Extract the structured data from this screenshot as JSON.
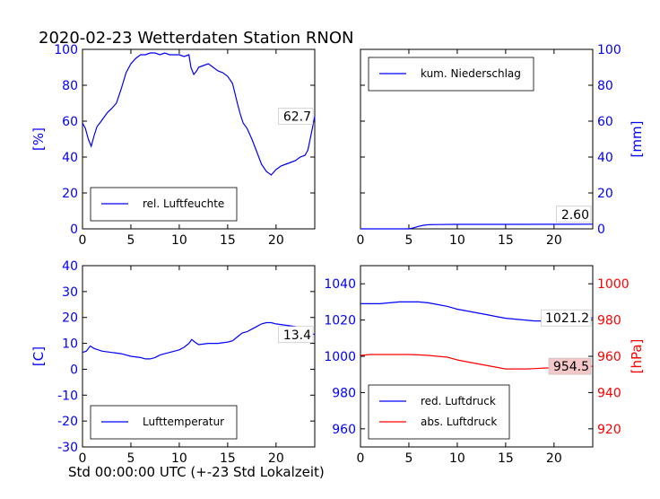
{
  "figure": {
    "title": "2020-02-23 Wetterdaten Station RNON",
    "xlabel": "Std 00:00:00 UTC (+-23 Std Lokalzeit)"
  },
  "colors": {
    "blue": "#0000ff",
    "red": "#ff0000",
    "label_bg": "#ffffff",
    "red_label_bg": "#f4c8c8"
  },
  "chart_data": [
    {
      "type": "line",
      "panel": "top-left",
      "ylabel": "[%]",
      "xlim": [
        0,
        24
      ],
      "ylim": [
        0,
        100
      ],
      "xticks": [
        0,
        5,
        10,
        15,
        20
      ],
      "yticks": [
        0,
        20,
        40,
        60,
        80,
        100
      ],
      "ytick_side": "left",
      "legend": {
        "placement": "lower-left",
        "entries": [
          "rel. Luftfeuchte"
        ]
      },
      "series": [
        {
          "name": "rel. Luftfeuchte",
          "color": "#0000ff",
          "axis": "left",
          "last_label": "62.7",
          "x": [
            0,
            0.3,
            0.6,
            0.9,
            1.2,
            1.5,
            1.8,
            2.2,
            2.6,
            3,
            3.5,
            4,
            4.5,
            5,
            5.5,
            6,
            6.5,
            7,
            7.5,
            8,
            8.5,
            9,
            9.5,
            10,
            10.5,
            11,
            11.2,
            11.5,
            11.8,
            12,
            12.5,
            13,
            13.5,
            14,
            14.5,
            15,
            15.5,
            16,
            16.3,
            16.6,
            17,
            17.5,
            18,
            18.5,
            19,
            19.5,
            20,
            20.5,
            21,
            21.5,
            22,
            22.5,
            23,
            23.3,
            23.6,
            24
          ],
          "y": [
            59,
            56,
            50,
            46,
            52,
            57,
            59,
            62,
            65,
            67,
            70,
            78,
            87,
            92,
            95,
            97,
            97,
            98,
            98,
            97,
            98,
            97,
            97,
            97,
            96,
            97,
            90,
            86,
            88,
            90,
            91,
            92,
            90,
            88,
            87,
            85,
            81,
            70,
            64,
            59,
            56,
            50,
            43,
            36,
            32,
            30,
            33,
            35,
            36,
            37,
            38,
            40,
            41,
            44,
            52,
            62.7
          ]
        }
      ]
    },
    {
      "type": "line",
      "panel": "top-right",
      "ylabel": "[mm]",
      "xlim": [
        0,
        24
      ],
      "ylim": [
        0,
        100
      ],
      "xticks": [
        0,
        5,
        10,
        15,
        20
      ],
      "yticks": [
        0,
        20,
        40,
        60,
        80,
        100
      ],
      "ytick_side": "right",
      "legend": {
        "placement": "top-left",
        "entries": [
          "kum. Niederschlag"
        ]
      },
      "series": [
        {
          "name": "kum. Niederschlag",
          "color": "#0000ff",
          "axis": "right",
          "last_label": "2.60",
          "x": [
            0,
            5,
            5.5,
            6,
            6.5,
            7,
            8,
            10,
            15,
            20,
            24
          ],
          "y": [
            0,
            0,
            0.6,
            1.4,
            2,
            2.3,
            2.4,
            2.5,
            2.5,
            2.55,
            2.6
          ]
        }
      ]
    },
    {
      "type": "line",
      "panel": "bottom-left",
      "ylabel": "[C]",
      "xlim": [
        0,
        24
      ],
      "ylim": [
        -30,
        40
      ],
      "xticks": [
        0,
        5,
        10,
        15,
        20
      ],
      "yticks": [
        -30,
        -20,
        -10,
        0,
        10,
        20,
        30,
        40
      ],
      "ytick_side": "left",
      "legend": {
        "placement": "lower-left",
        "entries": [
          "Lufttemperatur"
        ]
      },
      "series": [
        {
          "name": "Lufttemperatur",
          "color": "#0000ff",
          "axis": "left",
          "last_label": "13.4",
          "x": [
            0,
            0.4,
            0.8,
            1.2,
            2,
            3,
            4,
            5,
            6,
            6.5,
            7,
            7.5,
            8,
            8.5,
            9,
            10,
            10.5,
            11,
            11.3,
            11.6,
            12,
            13,
            14,
            15,
            15.5,
            16,
            16.5,
            17,
            17.5,
            18,
            18.5,
            19,
            19.5,
            20,
            21,
            22,
            22.5,
            23,
            23.5,
            24
          ],
          "y": [
            6.5,
            7,
            9,
            8,
            7,
            6.5,
            6,
            5,
            4.5,
            4,
            4,
            4.5,
            5.5,
            6,
            6.5,
            7.5,
            8.5,
            10,
            11.5,
            10.5,
            9.5,
            10,
            10,
            10.5,
            11,
            12.5,
            14,
            14.5,
            15.5,
            16.5,
            17.5,
            18,
            18,
            17.5,
            17,
            16.5,
            16,
            15,
            14,
            13.4
          ]
        }
      ]
    },
    {
      "type": "line",
      "panel": "bottom-right",
      "ylabel": "[hPa]",
      "xlim": [
        0,
        24
      ],
      "ylim": [
        950,
        1050
      ],
      "ylim_right": [
        910,
        1010
      ],
      "xticks": [
        0,
        5,
        10,
        15,
        20
      ],
      "yticks": [
        960,
        980,
        1000,
        1020,
        1040
      ],
      "yticks_right": [
        920,
        940,
        960,
        980,
        1000
      ],
      "ytick_side": "both",
      "legend": {
        "placement": "lower-left",
        "entries": [
          "red. Luftdruck",
          "abs. Luftdruck"
        ]
      },
      "series": [
        {
          "name": "red. Luftdruck",
          "color": "#0000ff",
          "axis": "left",
          "last_label": "1021.2",
          "x": [
            0,
            1,
            2,
            3,
            4,
            5,
            6,
            7,
            8,
            9,
            10,
            11,
            12,
            13,
            14,
            15,
            16,
            17,
            18,
            19,
            20,
            21,
            22,
            23,
            24
          ],
          "y": [
            1029,
            1029,
            1029,
            1029.5,
            1030,
            1030,
            1030,
            1029.5,
            1028.5,
            1027.5,
            1026,
            1025,
            1024,
            1023,
            1022,
            1021,
            1020.5,
            1020,
            1019.5,
            1019.5,
            1019.5,
            1020,
            1020.5,
            1021,
            1021.2
          ]
        },
        {
          "name": "abs. Luftdruck",
          "color": "#ff0000",
          "axis": "right",
          "last_label": "954.5",
          "x": [
            0,
            1,
            2,
            3,
            4,
            5,
            6,
            7,
            8,
            9,
            10,
            11,
            12,
            13,
            14,
            15,
            16,
            17,
            18,
            19,
            20,
            21,
            22,
            23,
            24
          ],
          "y": [
            960.5,
            961,
            961,
            961,
            961,
            961,
            960.8,
            960.5,
            960,
            959.5,
            958,
            957,
            956,
            955,
            954,
            953,
            953,
            953,
            953.2,
            953.5,
            953.7,
            954,
            954.2,
            954.4,
            954.5
          ]
        }
      ]
    }
  ]
}
